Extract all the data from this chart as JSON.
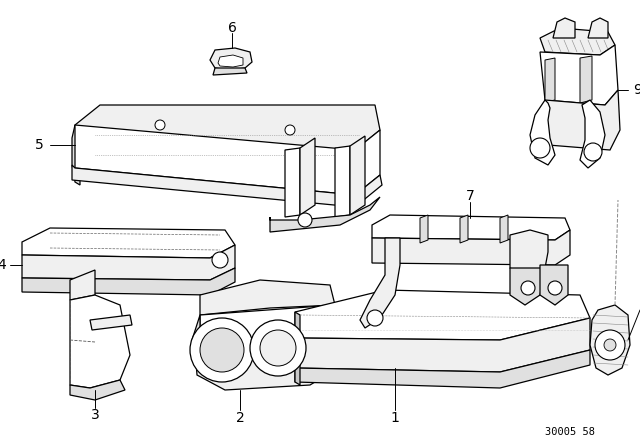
{
  "bg_color": "#ffffff",
  "line_color": "#000000",
  "fig_width": 6.4,
  "fig_height": 4.48,
  "dpi": 100,
  "catalog_number": "30005 58",
  "lw": 0.9
}
